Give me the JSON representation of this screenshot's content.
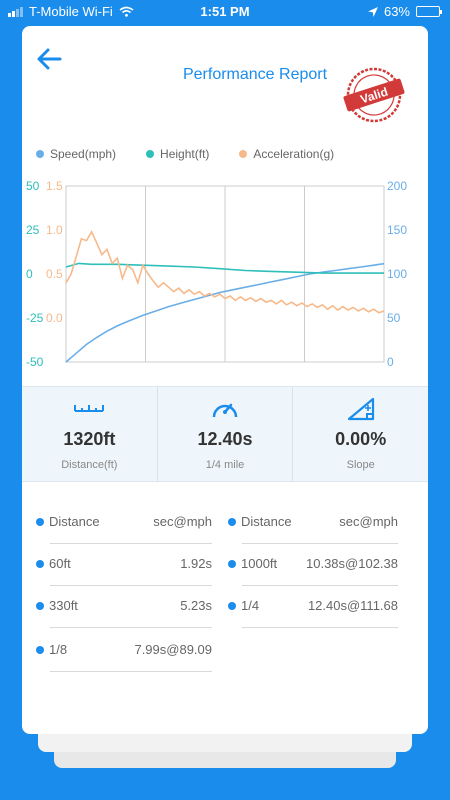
{
  "status": {
    "carrier": "T-Mobile Wi-Fi",
    "time": "1:51 PM",
    "battery": "63%",
    "battery_level": 0.63
  },
  "header": {
    "title": "Performance Report",
    "stamp_text": "Valid"
  },
  "chart_data": {
    "type": "line",
    "legend": [
      "Speed(mph)",
      "Height(ft)",
      "Acceleration(g)"
    ],
    "colors": {
      "speed": "#6aaee8",
      "height": "#2ebfba",
      "acceleration": "#f7b98a"
    },
    "axes": {
      "height_ticks": [
        "50",
        "25",
        "0",
        "-25",
        "-50"
      ],
      "accel_ticks": [
        "1.5",
        "1.0",
        "0.5",
        "0.0"
      ],
      "speed_ticks": [
        "200",
        "150",
        "100",
        "50",
        "0"
      ]
    },
    "ranges": {
      "height": [
        -50,
        50
      ],
      "acceleration": [
        -0.5,
        1.5
      ],
      "speed": [
        0,
        200
      ]
    },
    "grid": true,
    "time_range_s": [
      0,
      12.4
    ],
    "series": [
      {
        "name": "Speed(mph)",
        "axis": "speed",
        "points": [
          [
            0.0,
            0
          ],
          [
            0.4,
            10
          ],
          [
            0.8,
            20
          ],
          [
            1.2,
            28
          ],
          [
            1.6,
            35
          ],
          [
            2.0,
            41
          ],
          [
            2.4,
            46
          ],
          [
            3.0,
            53
          ],
          [
            3.5,
            58
          ],
          [
            4.0,
            63
          ],
          [
            4.5,
            67
          ],
          [
            5.0,
            71
          ],
          [
            5.5,
            75
          ],
          [
            6.0,
            79
          ],
          [
            6.5,
            82
          ],
          [
            7.0,
            85
          ],
          [
            7.5,
            88
          ],
          [
            8.0,
            91
          ],
          [
            8.5,
            94
          ],
          [
            9.0,
            97
          ],
          [
            9.5,
            100
          ],
          [
            10.0,
            102
          ],
          [
            10.5,
            104
          ],
          [
            11.0,
            106
          ],
          [
            11.5,
            108
          ],
          [
            12.0,
            110
          ],
          [
            12.4,
            111.7
          ]
        ]
      },
      {
        "name": "Height(ft)",
        "axis": "height",
        "points": [
          [
            0.0,
            4
          ],
          [
            0.5,
            6
          ],
          [
            1.0,
            5.5
          ],
          [
            2.0,
            5.5
          ],
          [
            3.0,
            5
          ],
          [
            4.0,
            4.5
          ],
          [
            5.0,
            4
          ],
          [
            6.0,
            3
          ],
          [
            7.0,
            2
          ],
          [
            8.0,
            1.5
          ],
          [
            9.0,
            1
          ],
          [
            10.0,
            0.5
          ],
          [
            11.0,
            0.5
          ],
          [
            12.0,
            0.5
          ],
          [
            12.4,
            0.5
          ]
        ]
      },
      {
        "name": "Acceleration(g)",
        "axis": "acceleration",
        "points": [
          [
            0.0,
            0.4
          ],
          [
            0.2,
            0.5
          ],
          [
            0.4,
            0.7
          ],
          [
            0.6,
            0.9
          ],
          [
            0.8,
            0.88
          ],
          [
            1.0,
            0.98
          ],
          [
            1.2,
            0.85
          ],
          [
            1.4,
            0.72
          ],
          [
            1.6,
            0.78
          ],
          [
            1.8,
            0.62
          ],
          [
            2.0,
            0.68
          ],
          [
            2.2,
            0.45
          ],
          [
            2.4,
            0.6
          ],
          [
            2.6,
            0.55
          ],
          [
            2.8,
            0.4
          ],
          [
            3.0,
            0.6
          ],
          [
            3.2,
            0.5
          ],
          [
            3.4,
            0.42
          ],
          [
            3.6,
            0.35
          ],
          [
            3.8,
            0.4
          ],
          [
            4.0,
            0.35
          ],
          [
            4.2,
            0.3
          ],
          [
            4.4,
            0.34
          ],
          [
            4.6,
            0.28
          ],
          [
            4.8,
            0.32
          ],
          [
            5.0,
            0.27
          ],
          [
            5.2,
            0.3
          ],
          [
            5.4,
            0.25
          ],
          [
            5.6,
            0.28
          ],
          [
            5.8,
            0.24
          ],
          [
            6.0,
            0.27
          ],
          [
            6.2,
            0.22
          ],
          [
            6.4,
            0.25
          ],
          [
            6.6,
            0.2
          ],
          [
            6.8,
            0.24
          ],
          [
            7.0,
            0.2
          ],
          [
            7.2,
            0.23
          ],
          [
            7.4,
            0.19
          ],
          [
            7.6,
            0.22
          ],
          [
            7.8,
            0.18
          ],
          [
            8.0,
            0.2
          ],
          [
            8.2,
            0.16
          ],
          [
            8.4,
            0.2
          ],
          [
            8.6,
            0.15
          ],
          [
            8.8,
            0.18
          ],
          [
            9.0,
            0.14
          ],
          [
            9.2,
            0.17
          ],
          [
            9.4,
            0.13
          ],
          [
            9.6,
            0.16
          ],
          [
            9.8,
            0.12
          ],
          [
            10.0,
            0.15
          ],
          [
            10.2,
            0.1
          ],
          [
            10.4,
            0.14
          ],
          [
            10.6,
            0.09
          ],
          [
            10.8,
            0.13
          ],
          [
            11.0,
            0.09
          ],
          [
            11.2,
            0.12
          ],
          [
            11.4,
            0.08
          ],
          [
            11.6,
            0.11
          ],
          [
            11.8,
            0.07
          ],
          [
            12.0,
            0.1
          ],
          [
            12.2,
            0.06
          ],
          [
            12.4,
            0.08
          ]
        ]
      }
    ]
  },
  "stats": [
    {
      "value": "1320ft",
      "label": "Distance(ft)",
      "icon": "ruler-icon"
    },
    {
      "value": "12.40s",
      "label": "1/4 mile",
      "icon": "gauge-icon"
    },
    {
      "value": "0.00%",
      "label": "Slope",
      "icon": "slope-icon"
    }
  ],
  "splits": {
    "header": {
      "label": "Distance",
      "value": "sec@mph"
    },
    "left": [
      {
        "label": "60ft",
        "value": "1.92s"
      },
      {
        "label": "330ft",
        "value": "5.23s"
      },
      {
        "label": "1/8",
        "value": "7.99s@89.09"
      }
    ],
    "right": [
      {
        "label": "1000ft",
        "value": "10.38s@102.38"
      },
      {
        "label": "1/4",
        "value": "12.40s@111.68"
      }
    ]
  }
}
